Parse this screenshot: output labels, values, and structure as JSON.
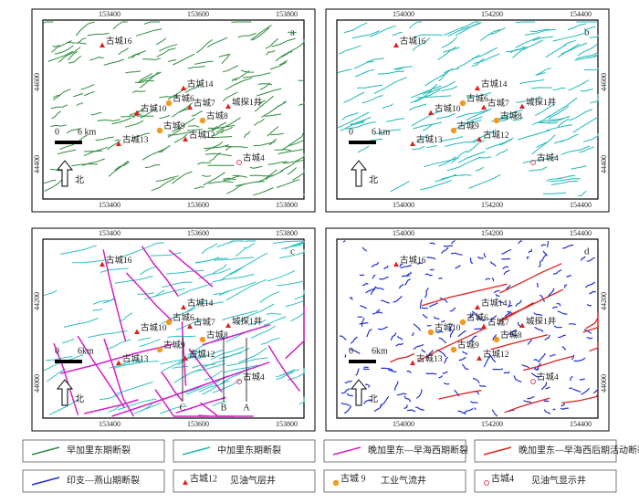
{
  "panels": [
    {
      "label": "a",
      "top_ticks": [
        "153400",
        "153600",
        "153800"
      ],
      "side_ticks": [
        "44600",
        "44400"
      ],
      "bottom_ticks": [
        "153400",
        "153600",
        "153800"
      ],
      "scale_label": "6 km"
    },
    {
      "label": "b",
      "top_ticks": [
        "154000",
        "154200",
        "154400"
      ],
      "side_ticks": [
        "44600",
        "44400"
      ],
      "bottom_ticks": [
        "154000",
        "154200",
        "154400"
      ],
      "scale_label": "6 km"
    },
    {
      "label": "c",
      "top_ticks": [
        "153400",
        "153600",
        "153800"
      ],
      "side_ticks": [
        "44200",
        "44000"
      ],
      "bottom_ticks": [
        "153400",
        "153600",
        "153800"
      ],
      "scale_label": "6km"
    },
    {
      "label": "d",
      "top_ticks": [
        "154000",
        "154200",
        "154400"
      ],
      "side_ticks": [
        "44200",
        "44000"
      ],
      "bottom_ticks": [
        "154000",
        "154200",
        "154400"
      ],
      "scale_label": "6km"
    }
  ],
  "wells": [
    "古城16",
    "古城14",
    "古城6",
    "古城10",
    "古城7",
    "城探1井",
    "古城8",
    "古城9",
    "古城12",
    "古城13",
    "古城4"
  ],
  "scale_zero": "0",
  "north": "北",
  "sections": [
    "A",
    "B",
    "C"
  ],
  "legend": [
    {
      "text": "早加里东期断裂"
    },
    {
      "text": "中加里东期断裂"
    },
    {
      "text": "晚加里东—早海西期断裂"
    },
    {
      "text": "晚加里东—早海西后期活动断裂"
    },
    {
      "text": "印支—燕山期断裂"
    },
    {
      "sample": "古城12",
      "text": "见油气层井"
    },
    {
      "sample": "古城 9",
      "text": "工业气流井"
    },
    {
      "sample": "古城4",
      "text": "见油气显示井"
    }
  ]
}
